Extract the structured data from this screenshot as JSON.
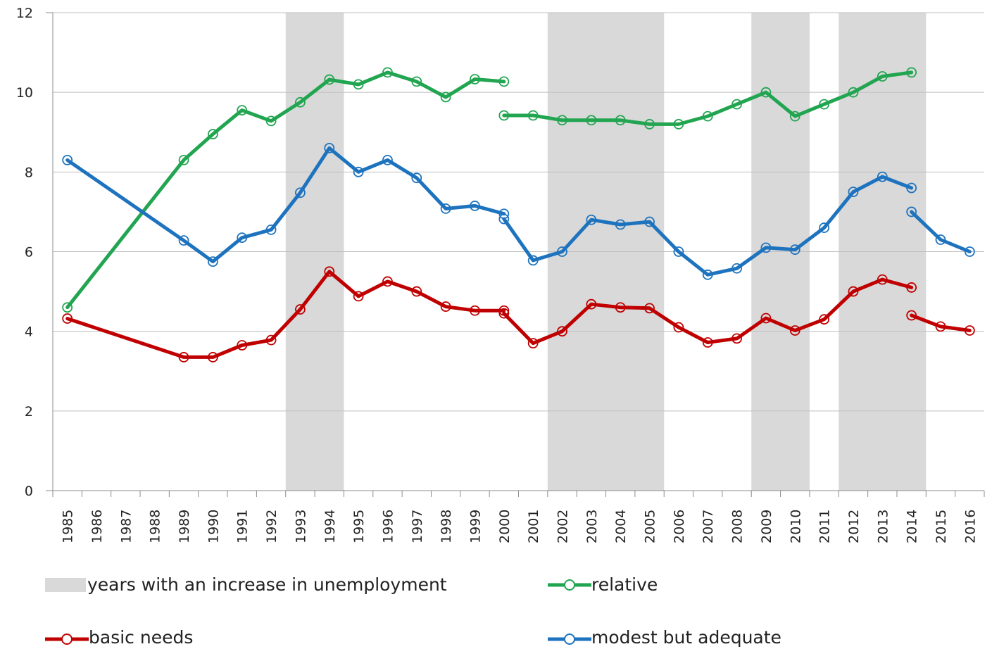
{
  "chart_data": {
    "type": "line",
    "title": "",
    "xlabel": "",
    "ylabel": "",
    "ylim": [
      0,
      12
    ],
    "yticks": [
      0,
      2,
      4,
      6,
      8,
      10,
      12
    ],
    "grid": "horizontal",
    "categories": [
      "1985",
      "1986",
      "1987",
      "1988",
      "1989",
      "1990",
      "1991",
      "1992",
      "1993",
      "1994",
      "1995",
      "1996",
      "1997",
      "1998",
      "1999",
      "2000",
      "2001",
      "2002",
      "2003",
      "2004",
      "2005",
      "2006",
      "2007",
      "2008",
      "2009",
      "2010",
      "2011",
      "2012",
      "2013",
      "2014",
      "2015",
      "2016"
    ],
    "shaded_bands": {
      "label": "years with an increase in unemployment",
      "color": "#d9d9d9",
      "ranges": [
        [
          "1993",
          "1994"
        ],
        [
          "2002",
          "2005"
        ],
        [
          "2009",
          "2010"
        ],
        [
          "2012",
          "2014"
        ]
      ]
    },
    "series": [
      {
        "name": "relative",
        "color": "#21a550",
        "segments": [
          [
            [
              "1985",
              4.6
            ],
            [
              "1989",
              8.3
            ],
            [
              "1990",
              8.95
            ],
            [
              "1991",
              9.55
            ],
            [
              "1992",
              9.28
            ],
            [
              "1993",
              9.75
            ],
            [
              "1994",
              10.32
            ],
            [
              "1995",
              10.2
            ],
            [
              "1996",
              10.5
            ],
            [
              "1997",
              10.27
            ],
            [
              "1998",
              9.88
            ],
            [
              "1999",
              10.33
            ],
            [
              "2000",
              10.27
            ]
          ],
          [
            [
              "2000",
              9.42
            ],
            [
              "2001",
              9.42
            ],
            [
              "2002",
              9.3
            ],
            [
              "2003",
              9.3
            ],
            [
              "2004",
              9.3
            ],
            [
              "2005",
              9.2
            ],
            [
              "2006",
              9.2
            ],
            [
              "2007",
              9.4
            ],
            [
              "2008",
              9.7
            ],
            [
              "2009",
              10.0
            ],
            [
              "2010",
              9.4
            ],
            [
              "2011",
              9.7
            ],
            [
              "2012",
              10.0
            ],
            [
              "2013",
              10.4
            ],
            [
              "2014",
              10.5
            ]
          ]
        ]
      },
      {
        "name": "modest but adequate",
        "color": "#1e73be",
        "segments": [
          [
            [
              "1985",
              8.3
            ],
            [
              "1989",
              6.28
            ],
            [
              "1990",
              5.75
            ],
            [
              "1991",
              6.35
            ],
            [
              "1992",
              6.55
            ],
            [
              "1993",
              7.48
            ],
            [
              "1994",
              8.6
            ],
            [
              "1995",
              8.0
            ],
            [
              "1996",
              8.3
            ],
            [
              "1997",
              7.85
            ],
            [
              "1998",
              7.08
            ],
            [
              "1999",
              7.15
            ],
            [
              "2000",
              6.95
            ]
          ],
          [
            [
              "2000",
              6.82
            ],
            [
              "2001",
              5.78
            ],
            [
              "2002",
              6.0
            ],
            [
              "2003",
              6.8
            ],
            [
              "2004",
              6.68
            ],
            [
              "2005",
              6.75
            ],
            [
              "2006",
              6.0
            ],
            [
              "2007",
              5.42
            ],
            [
              "2008",
              5.58
            ],
            [
              "2009",
              6.1
            ],
            [
              "2010",
              6.05
            ],
            [
              "2011",
              6.6
            ],
            [
              "2012",
              7.5
            ],
            [
              "2013",
              7.88
            ],
            [
              "2014",
              7.6
            ]
          ],
          [
            [
              "2014",
              7.0
            ],
            [
              "2015",
              6.3
            ],
            [
              "2016",
              6.0
            ]
          ]
        ]
      },
      {
        "name": "basic needs",
        "color": "#c00000",
        "segments": [
          [
            [
              "1985",
              4.32
            ],
            [
              "1989",
              3.35
            ],
            [
              "1990",
              3.35
            ],
            [
              "1991",
              3.65
            ],
            [
              "1992",
              3.78
            ],
            [
              "1993",
              4.55
            ],
            [
              "1994",
              5.5
            ],
            [
              "1995",
              4.88
            ],
            [
              "1996",
              5.25
            ],
            [
              "1997",
              5.0
            ],
            [
              "1998",
              4.62
            ],
            [
              "1999",
              4.52
            ],
            [
              "2000",
              4.52
            ]
          ],
          [
            [
              "2000",
              4.45
            ],
            [
              "2001",
              3.7
            ],
            [
              "2002",
              4.0
            ],
            [
              "2003",
              4.68
            ],
            [
              "2004",
              4.6
            ],
            [
              "2005",
              4.58
            ],
            [
              "2006",
              4.1
            ],
            [
              "2007",
              3.72
            ],
            [
              "2008",
              3.82
            ],
            [
              "2009",
              4.33
            ],
            [
              "2010",
              4.02
            ],
            [
              "2011",
              4.3
            ],
            [
              "2012",
              5.0
            ],
            [
              "2013",
              5.3
            ],
            [
              "2014",
              5.1
            ]
          ],
          [
            [
              "2014",
              4.4
            ],
            [
              "2015",
              4.12
            ],
            [
              "2016",
              4.02
            ]
          ]
        ]
      }
    ],
    "legend": {
      "placement": "bottom",
      "items": [
        {
          "key": "band",
          "label": "years with an increase in unemployment"
        },
        {
          "key": "relative",
          "label": "relative"
        },
        {
          "key": "basic",
          "label": "basic needs"
        },
        {
          "key": "modest",
          "label": "modest but adequate"
        }
      ]
    }
  }
}
